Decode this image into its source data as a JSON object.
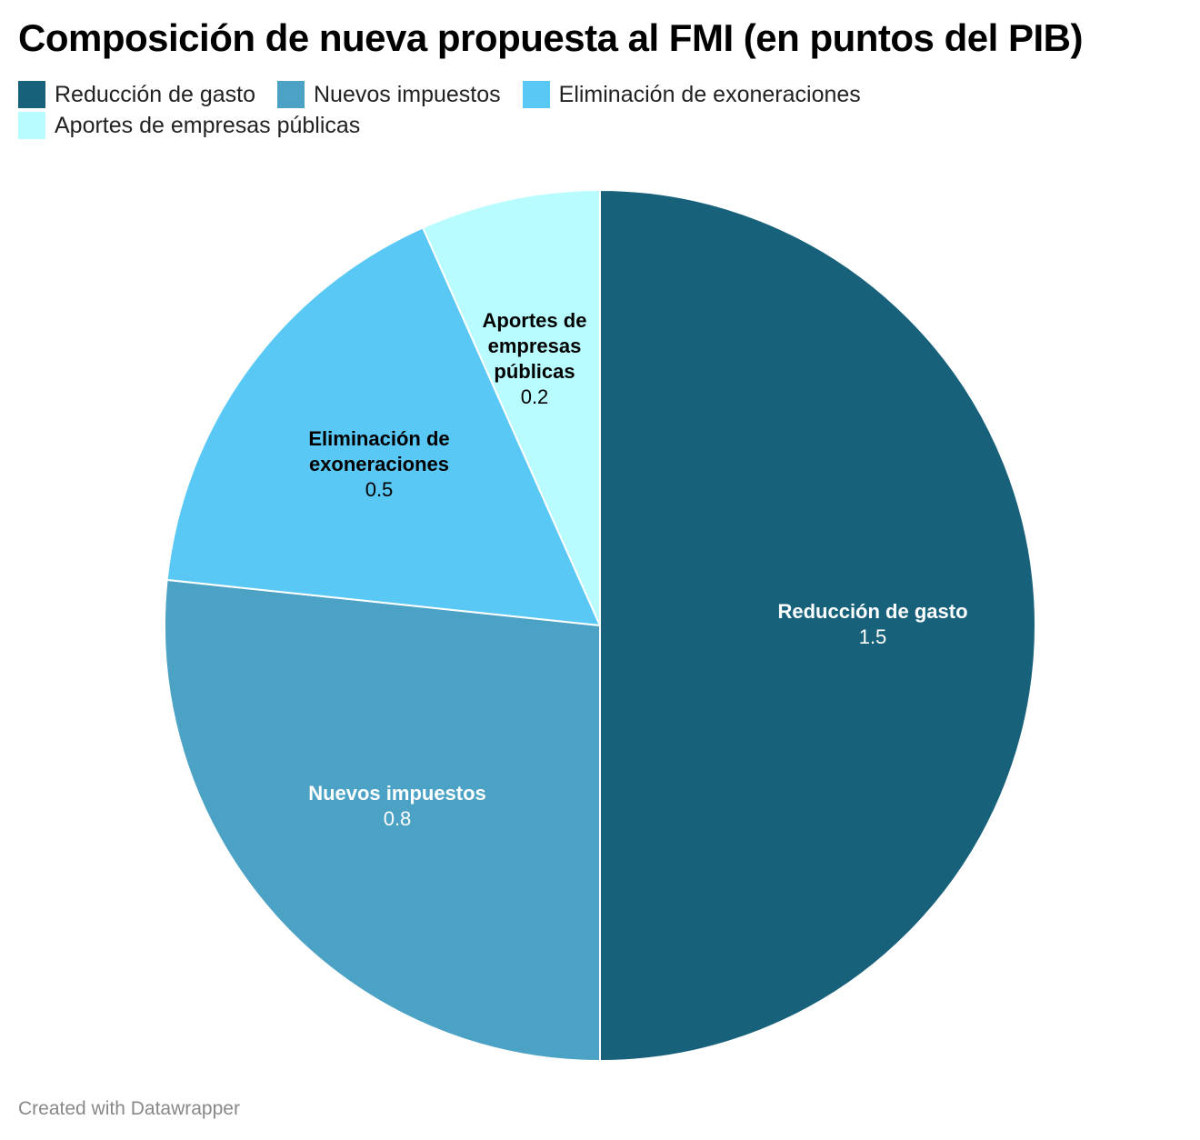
{
  "chart_data": {
    "type": "pie",
    "title": "Composición de nueva propuesta al FMI (en puntos del PIB)",
    "categories": [
      "Reducción de gasto",
      "Nuevos impuestos",
      "Eliminación de exoneraciones",
      "Aportes de empresas públicas"
    ],
    "values": [
      1.5,
      0.8,
      0.5,
      0.2
    ],
    "value_labels": [
      "1.5",
      "0.8",
      "0.5",
      "0.2"
    ],
    "slice_label_lines": [
      [
        "Reducción de gasto"
      ],
      [
        "Nuevos impuestos"
      ],
      [
        "Eliminación de",
        "exoneraciones"
      ],
      [
        "Aportes de",
        "empresas",
        "públicas"
      ]
    ],
    "colors": [
      "#17617b",
      "#4ba2c5",
      "#59c8f5",
      "#b8fcff"
    ],
    "label_colors": [
      "#ffffff",
      "#ffffff",
      "#000000",
      "#000000"
    ],
    "legend_placement": "top-left",
    "start_angle": "12 o'clock",
    "direction": "clockwise"
  },
  "footer": {
    "credit": "Created with Datawrapper"
  }
}
